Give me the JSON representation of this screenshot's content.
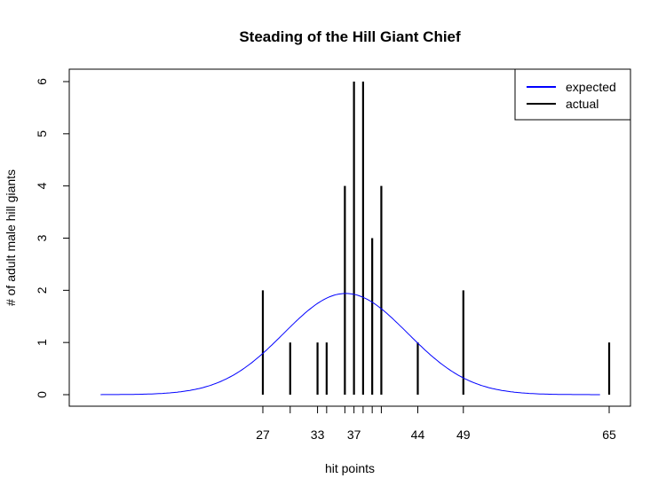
{
  "chart_data": {
    "type": "bar",
    "title": "Steading of the Hill Giant Chief",
    "xlabel": "hit points",
    "ylabel": "# of adult male hill giants",
    "x_ticks": [
      27,
      33,
      37,
      44,
      49,
      65
    ],
    "x_tick_minor": [
      27,
      30,
      33,
      34,
      36,
      37,
      38,
      39,
      40,
      44,
      49,
      65
    ],
    "y_ticks": [
      0,
      1,
      2,
      3,
      4,
      5,
      6
    ],
    "ylim": [
      0,
      6
    ],
    "xlim": [
      9,
      65
    ],
    "grid": false,
    "legend_position": "top-right",
    "series": [
      {
        "name": "actual",
        "style": "vertical-lines",
        "color": "#000000",
        "x": [
          27,
          30,
          33,
          34,
          36,
          37,
          38,
          39,
          40,
          44,
          49,
          65
        ],
        "values": [
          2,
          1,
          1,
          1,
          4,
          6,
          6,
          3,
          4,
          1,
          2,
          1
        ]
      },
      {
        "name": "expected",
        "style": "line",
        "color": "#0000ff",
        "distribution": "normal",
        "mean": 36.1,
        "sd": 6.8,
        "peak": 1.94,
        "x_range": [
          9.2,
          64
        ]
      }
    ]
  },
  "legend": {
    "items": [
      {
        "label": "expected",
        "color": "#0000ff"
      },
      {
        "label": "actual",
        "color": "#000000"
      }
    ]
  }
}
